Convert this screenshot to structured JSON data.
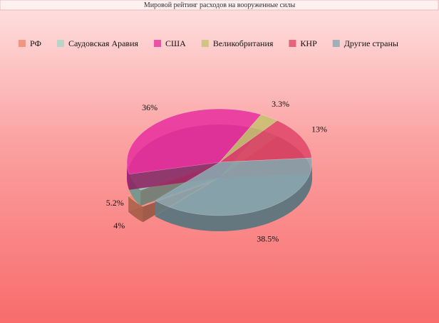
{
  "chart_data": {
    "type": "pie",
    "title": "Мировой рейтинг расходов на вооруженные силы",
    "categories": [
      "РФ",
      "Саудовская Аравия",
      "США",
      "Великобритания",
      "КНР",
      "Другие страны"
    ],
    "values": [
      4,
      5.2,
      36,
      3.3,
      13,
      38.5
    ],
    "value_labels": [
      "4%",
      "5.2%",
      "36%",
      "3.3%",
      "13%",
      "38.5%"
    ],
    "colors": [
      "#f0886a",
      "#a8d4c8",
      "#e8329e",
      "#c8c070",
      "#e0486a",
      "#8aa8b0"
    ],
    "legend": "top"
  }
}
